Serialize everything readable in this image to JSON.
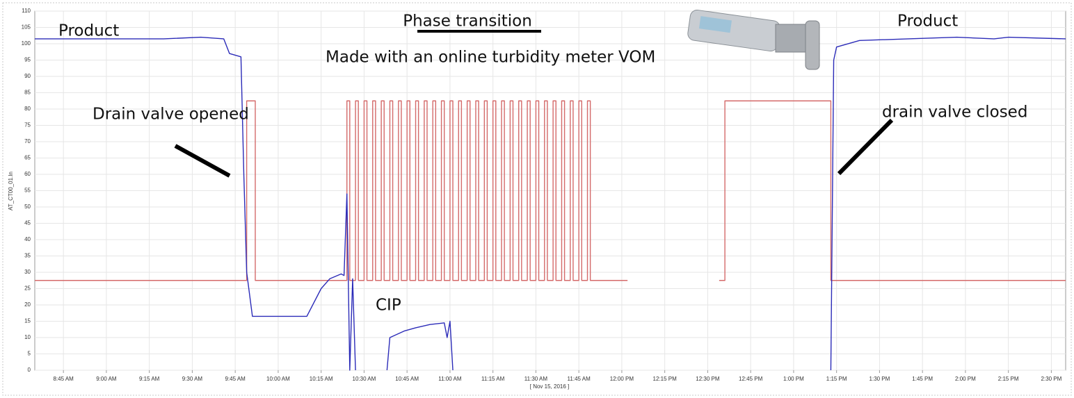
{
  "chart_data": {
    "type": "line",
    "y_label": "AT_CT00_01.In",
    "x_label": "[ Nov 15, 2016 ]",
    "annotations": [
      "Product",
      "Phase transition",
      "Made with an online turbidity meter VOM",
      "Drain valve opened",
      "CIP",
      "drain valve closed",
      "Product"
    ],
    "xlim": [
      515,
      875
    ],
    "xticks": [
      {
        "value": 525,
        "label": "8:45 AM"
      },
      {
        "value": 540,
        "label": "9:00 AM"
      },
      {
        "value": 555,
        "label": "9:15 AM"
      },
      {
        "value": 570,
        "label": "9:30 AM"
      },
      {
        "value": 585,
        "label": "9:45 AM"
      },
      {
        "value": 600,
        "label": "10:00 AM"
      },
      {
        "value": 615,
        "label": "10:15 AM"
      },
      {
        "value": 630,
        "label": "10:30 AM"
      },
      {
        "value": 645,
        "label": "10:45 AM"
      },
      {
        "value": 660,
        "label": "11:00 AM"
      },
      {
        "value": 675,
        "label": "11:15 AM"
      },
      {
        "value": 690,
        "label": "11:30 AM"
      },
      {
        "value": 705,
        "label": "11:45 AM"
      },
      {
        "value": 720,
        "label": "12:00 PM"
      },
      {
        "value": 735,
        "label": "12:15 PM"
      },
      {
        "value": 750,
        "label": "12:30 PM"
      },
      {
        "value": 765,
        "label": "12:45 PM"
      },
      {
        "value": 780,
        "label": "1:00 PM"
      },
      {
        "value": 795,
        "label": "1:15 PM"
      },
      {
        "value": 810,
        "label": "1:30 PM"
      },
      {
        "value": 825,
        "label": "1:45 PM"
      },
      {
        "value": 840,
        "label": "2:00 PM"
      },
      {
        "value": 855,
        "label": "2:15 PM"
      },
      {
        "value": 870,
        "label": "2:30 PM"
      }
    ],
    "ylim": [
      0,
      110
    ],
    "yticks": [
      0,
      5,
      10,
      15,
      20,
      25,
      30,
      35,
      40,
      45,
      50,
      55,
      60,
      65,
      70,
      75,
      80,
      85,
      90,
      95,
      100,
      105,
      110
    ],
    "grid": true,
    "series": [
      {
        "color": "#2b2bb8",
        "x": [
          515,
          560,
          573,
          581,
          583,
          587,
          588,
          589,
          591,
          610,
          615,
          618,
          622,
          623,
          624,
          625,
          626,
          627,
          628,
          638,
          639,
          644,
          648,
          653,
          658,
          659,
          660,
          661,
          662,
          793,
          794,
          795,
          803,
          820,
          837,
          850,
          855,
          875
        ],
        "values": [
          101.5,
          101.5,
          102,
          101.5,
          97,
          96,
          60,
          30,
          16.5,
          16.5,
          25,
          28,
          29.5,
          29,
          54,
          0,
          28,
          0,
          null,
          0,
          10,
          12,
          13,
          14,
          14.5,
          10,
          15,
          0,
          null,
          0,
          95,
          99,
          101,
          101.5,
          102,
          101.5,
          102,
          101.5
        ]
      },
      {
        "color": "#d46a6a",
        "x": [
          515,
          589,
          589,
          592,
          592,
          624,
          624,
          625,
          625,
          627,
          627,
          628,
          628,
          630,
          630,
          631,
          631,
          633,
          633,
          634,
          634,
          636,
          636,
          637,
          637,
          639,
          639,
          640,
          640,
          642,
          642,
          643,
          643,
          645,
          645,
          646,
          646,
          648,
          648,
          649,
          649,
          651,
          651,
          652,
          652,
          654,
          654,
          655,
          655,
          657,
          657,
          658,
          658,
          660,
          660,
          661,
          661,
          663,
          663,
          664,
          664,
          666,
          666,
          667,
          667,
          669,
          669,
          670,
          670,
          672,
          672,
          673,
          673,
          675,
          675,
          676,
          676,
          678,
          678,
          679,
          679,
          681,
          681,
          682,
          682,
          684,
          684,
          685,
          685,
          687,
          687,
          688,
          688,
          690,
          690,
          691,
          691,
          693,
          693,
          694,
          694,
          696,
          696,
          697,
          697,
          699,
          699,
          700,
          700,
          702,
          702,
          703,
          703,
          705,
          705,
          706,
          706,
          708,
          708,
          709,
          709,
          722,
          738,
          754,
          756,
          756,
          793,
          793,
          875
        ],
        "values": [
          27.5,
          27.5,
          82.5,
          82.5,
          27.5,
          27.5,
          82.5,
          82.5,
          27.5,
          27.5,
          82.5,
          82.5,
          27.5,
          27.5,
          82.5,
          82.5,
          27.5,
          27.5,
          82.5,
          82.5,
          27.5,
          27.5,
          82.5,
          82.5,
          27.5,
          27.5,
          82.5,
          82.5,
          27.5,
          27.5,
          82.5,
          82.5,
          27.5,
          27.5,
          82.5,
          82.5,
          27.5,
          27.5,
          82.5,
          82.5,
          27.5,
          27.5,
          82.5,
          82.5,
          27.5,
          27.5,
          82.5,
          82.5,
          27.5,
          27.5,
          82.5,
          82.5,
          27.5,
          27.5,
          82.5,
          82.5,
          27.5,
          27.5,
          82.5,
          82.5,
          27.5,
          27.5,
          82.5,
          82.5,
          27.5,
          27.5,
          82.5,
          82.5,
          27.5,
          27.5,
          82.5,
          82.5,
          27.5,
          27.5,
          82.5,
          82.5,
          27.5,
          27.5,
          82.5,
          82.5,
          27.5,
          27.5,
          82.5,
          82.5,
          27.5,
          27.5,
          82.5,
          82.5,
          27.5,
          27.5,
          82.5,
          82.5,
          27.5,
          27.5,
          82.5,
          82.5,
          27.5,
          27.5,
          82.5,
          82.5,
          27.5,
          27.5,
          82.5,
          82.5,
          27.5,
          27.5,
          82.5,
          82.5,
          27.5,
          27.5,
          82.5,
          82.5,
          27.5,
          27.5,
          82.5,
          82.5,
          27.5,
          27.5,
          82.5,
          82.5,
          27.5,
          27.5,
          null,
          27.5,
          27.5,
          82.5,
          82.5,
          27.5,
          27.5
        ]
      }
    ]
  }
}
